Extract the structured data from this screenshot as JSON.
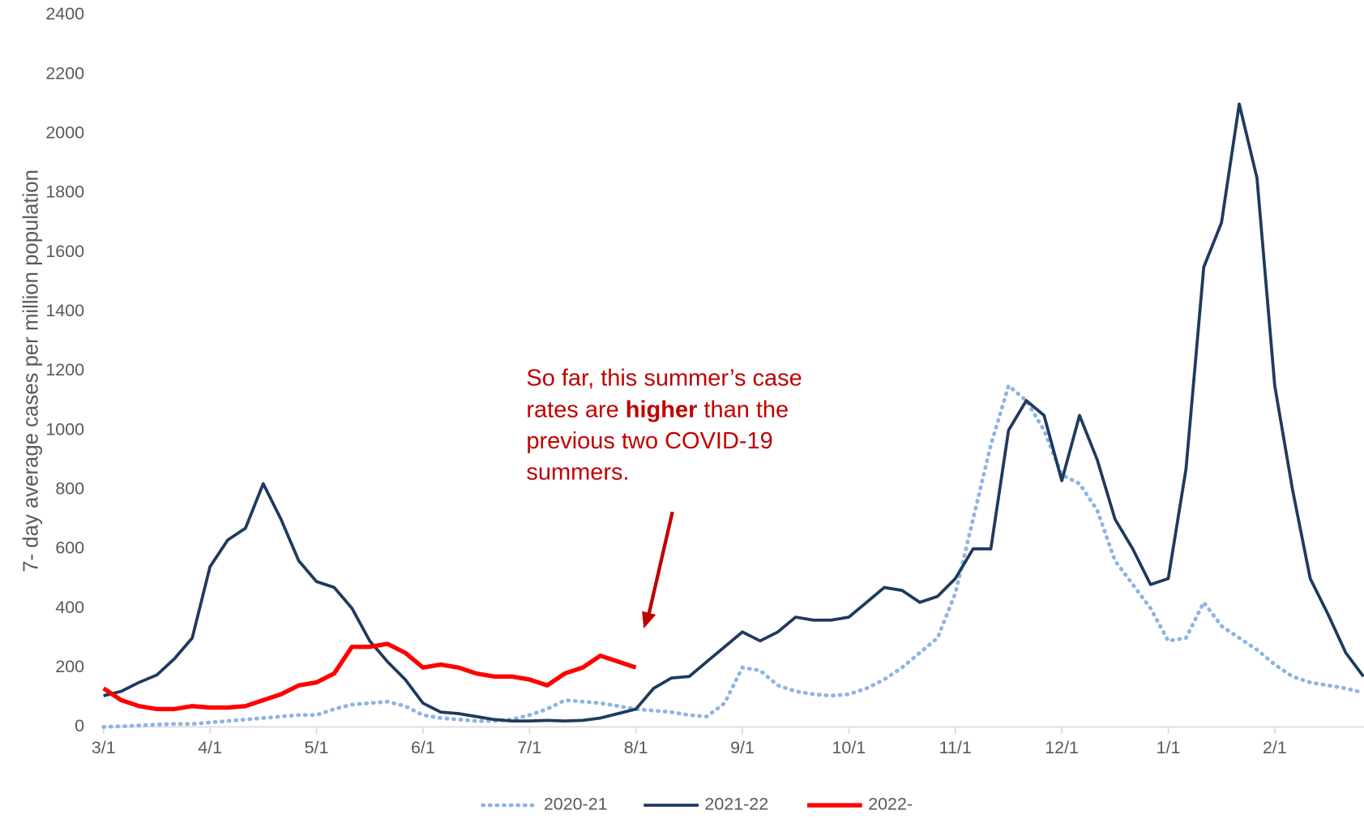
{
  "chart_data": {
    "type": "line",
    "y_label": "7- day average cases per million population",
    "annotation": [
      "So far, this summer’s case rates are ",
      "higher",
      " than the previous two COVID-19 summers."
    ],
    "categories": [
      "3/1",
      null,
      null,
      null,
      null,
      null,
      "4/1",
      null,
      null,
      null,
      null,
      null,
      "5/1",
      null,
      null,
      null,
      null,
      null,
      "6/1",
      null,
      null,
      null,
      null,
      null,
      "7/1",
      null,
      null,
      null,
      null,
      null,
      "8/1",
      null,
      null,
      null,
      null,
      null,
      "9/1",
      null,
      null,
      null,
      null,
      null,
      "10/1",
      null,
      null,
      null,
      null,
      null,
      "11/1",
      null,
      null,
      null,
      null,
      null,
      "12/1",
      null,
      null,
      null,
      null,
      null,
      "1/1",
      null,
      null,
      null,
      null,
      null,
      "2/1",
      null,
      null,
      null,
      null,
      null
    ],
    "series": [
      {
        "name": "2020-21",
        "color": "#8fb4e3",
        "style": "dotted",
        "values": [
          0,
          2,
          5,
          8,
          10,
          10,
          15,
          20,
          25,
          30,
          35,
          40,
          40,
          60,
          75,
          80,
          85,
          70,
          40,
          30,
          25,
          20,
          20,
          25,
          40,
          60,
          90,
          85,
          80,
          70,
          60,
          55,
          50,
          40,
          35,
          80,
          200,
          190,
          140,
          120,
          110,
          105,
          110,
          130,
          160,
          200,
          250,
          300,
          450,
          700,
          950,
          1150,
          1100,
          1000,
          850,
          820,
          730,
          560,
          480,
          400,
          290,
          300,
          420,
          340,
          300,
          260,
          210,
          170,
          150,
          140,
          130,
          115
        ]
      },
      {
        "name": "2021-22",
        "color": "#1f3a5f",
        "style": "solid",
        "values": [
          105,
          120,
          150,
          175,
          230,
          300,
          540,
          630,
          670,
          820,
          700,
          560,
          490,
          470,
          400,
          290,
          220,
          160,
          80,
          50,
          45,
          35,
          25,
          20,
          20,
          22,
          20,
          22,
          30,
          45,
          60,
          130,
          165,
          170,
          220,
          270,
          320,
          290,
          320,
          370,
          360,
          360,
          370,
          420,
          470,
          460,
          420,
          440,
          500,
          600,
          600,
          1000,
          1100,
          1050,
          830,
          1050,
          900,
          700,
          600,
          480,
          500,
          870,
          1550,
          1700,
          2100,
          1850,
          1150,
          800,
          500,
          380,
          250,
          170
        ]
      },
      {
        "name": "2022-",
        "color": "#ff0000",
        "style": "solid",
        "values": [
          130,
          90,
          70,
          60,
          60,
          70,
          65,
          65,
          70,
          90,
          110,
          140,
          150,
          180,
          270,
          270,
          280,
          250,
          200,
          210,
          200,
          180,
          170,
          170,
          160,
          140,
          180,
          200,
          240,
          220,
          200,
          null,
          null,
          null,
          null,
          null,
          null,
          null,
          null,
          null,
          null,
          null,
          null,
          null,
          null,
          null,
          null,
          null,
          null,
          null,
          null,
          null,
          null,
          null,
          null,
          null,
          null,
          null,
          null,
          null,
          null,
          null,
          null,
          null,
          null,
          null,
          null,
          null,
          null,
          null,
          null,
          null
        ]
      }
    ],
    "ylim": [
      0,
      2400
    ],
    "yticks": [
      0,
      200,
      400,
      600,
      800,
      1000,
      1200,
      1400,
      1600,
      1800,
      2000,
      2200,
      2400
    ],
    "legend": "bottom"
  }
}
